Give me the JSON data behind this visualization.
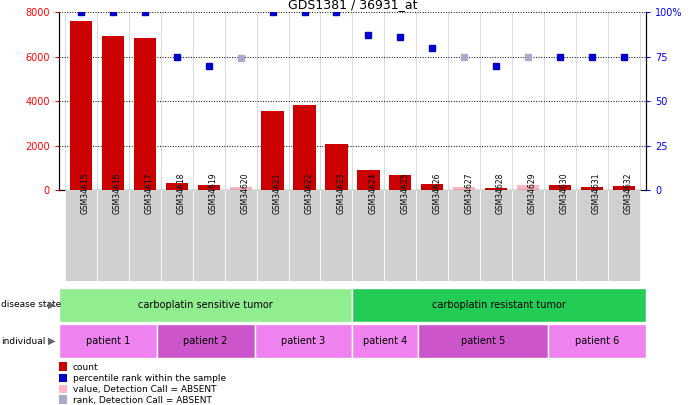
{
  "title": "GDS1381 / 36931_at",
  "samples": [
    "GSM34615",
    "GSM34616",
    "GSM34617",
    "GSM34618",
    "GSM34619",
    "GSM34620",
    "GSM34621",
    "GSM34622",
    "GSM34623",
    "GSM34624",
    "GSM34625",
    "GSM34626",
    "GSM34627",
    "GSM34628",
    "GSM34629",
    "GSM34630",
    "GSM34631",
    "GSM34632"
  ],
  "bar_values": [
    7600,
    6950,
    6850,
    350,
    230,
    150,
    3550,
    3850,
    2100,
    900,
    700,
    300,
    150,
    100,
    250,
    220,
    150,
    200
  ],
  "bar_absent": [
    false,
    false,
    false,
    false,
    false,
    true,
    false,
    false,
    false,
    false,
    false,
    false,
    true,
    false,
    true,
    false,
    false,
    false
  ],
  "percentile_values": [
    100,
    100,
    100,
    75,
    70,
    74,
    100,
    100,
    100,
    87,
    86,
    80,
    75,
    70,
    75,
    75,
    75,
    75
  ],
  "percentile_absent": [
    false,
    false,
    false,
    false,
    false,
    true,
    false,
    false,
    false,
    false,
    false,
    false,
    true,
    false,
    true,
    false,
    false,
    false
  ],
  "ylim_left": [
    0,
    8000
  ],
  "ylim_right": [
    0,
    100
  ],
  "yticks_left": [
    0,
    2000,
    4000,
    6000,
    8000
  ],
  "yticks_right": [
    0,
    25,
    50,
    75,
    100
  ],
  "disease_state_sensitive_label": "carboplatin sensitive tumor",
  "disease_state_resistant_label": "carboplatin resistant tumor",
  "disease_state_sensitive_color": "#90EE90",
  "disease_state_resistant_color": "#22CC55",
  "individuals": [
    {
      "label": "patient 1",
      "start": 0,
      "end": 3,
      "color": "#EE82EE"
    },
    {
      "label": "patient 2",
      "start": 3,
      "end": 6,
      "color": "#CC55CC"
    },
    {
      "label": "patient 3",
      "start": 6,
      "end": 9,
      "color": "#EE82EE"
    },
    {
      "label": "patient 4",
      "start": 9,
      "end": 11,
      "color": "#EE82EE"
    },
    {
      "label": "patient 5",
      "start": 11,
      "end": 15,
      "color": "#CC55CC"
    },
    {
      "label": "patient 6",
      "start": 15,
      "end": 18,
      "color": "#EE82EE"
    }
  ],
  "bar_color_present": "#CC0000",
  "bar_color_absent": "#FFB6C1",
  "dot_color_present": "#0000CC",
  "dot_color_absent": "#AAAACC"
}
